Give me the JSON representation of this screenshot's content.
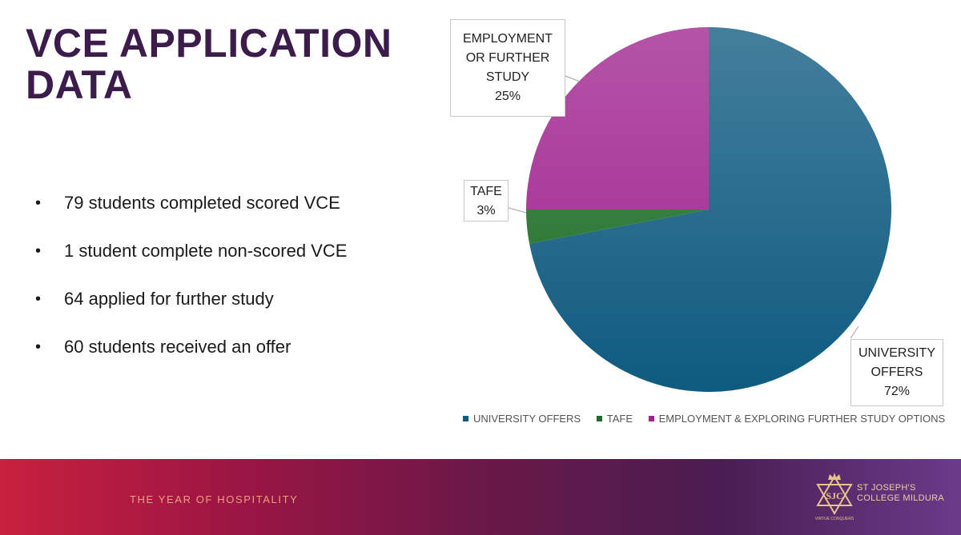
{
  "slide": {
    "title_line1": "VCE APPLICATION",
    "title_line2": "DATA",
    "bullets": [
      "79 students completed scored VCE",
      "1 student complete non-scored VCE",
      "64 applied for further study",
      "60 students received an offer"
    ]
  },
  "chart_data": {
    "type": "pie",
    "title": "",
    "slices": [
      {
        "label": "UNIVERSITY OFFERS",
        "value": 72,
        "color": "#0f5a80"
      },
      {
        "label": "TAFE",
        "value": 3,
        "color": "#1d6e26"
      },
      {
        "label": "EMPLOYMENT & EXPLORING FURTHER STUDY OPTIONS",
        "value": 25,
        "color": "#a0238f"
      }
    ],
    "data_labels": [
      {
        "lines": [
          "UNIVERSITY",
          "OFFERS"
        ],
        "percent": "72%"
      },
      {
        "lines": [
          "TAFE"
        ],
        "percent": "3%"
      },
      {
        "lines": [
          "EMPLOYMENT",
          "OR FURTHER",
          "STUDY"
        ],
        "percent": "25%"
      }
    ],
    "legend": {
      "placement": "bottom",
      "entries": [
        "UNIVERSITY OFFERS",
        "TAFE",
        "EMPLOYMENT & EXPLORING FURTHER STUDY OPTIONS"
      ]
    }
  },
  "footer": {
    "tagline": "THE YEAR OF HOSPITALITY",
    "college_line1": "ST JOSEPH'S",
    "college_line2": "COLLEGE MILDURA",
    "logo_motto": "VIRTUE CONQUERS",
    "logo_monogram": "SJC",
    "accent_color": "#e8a27c",
    "logo_icon": "star-crown-emblem-icon"
  }
}
